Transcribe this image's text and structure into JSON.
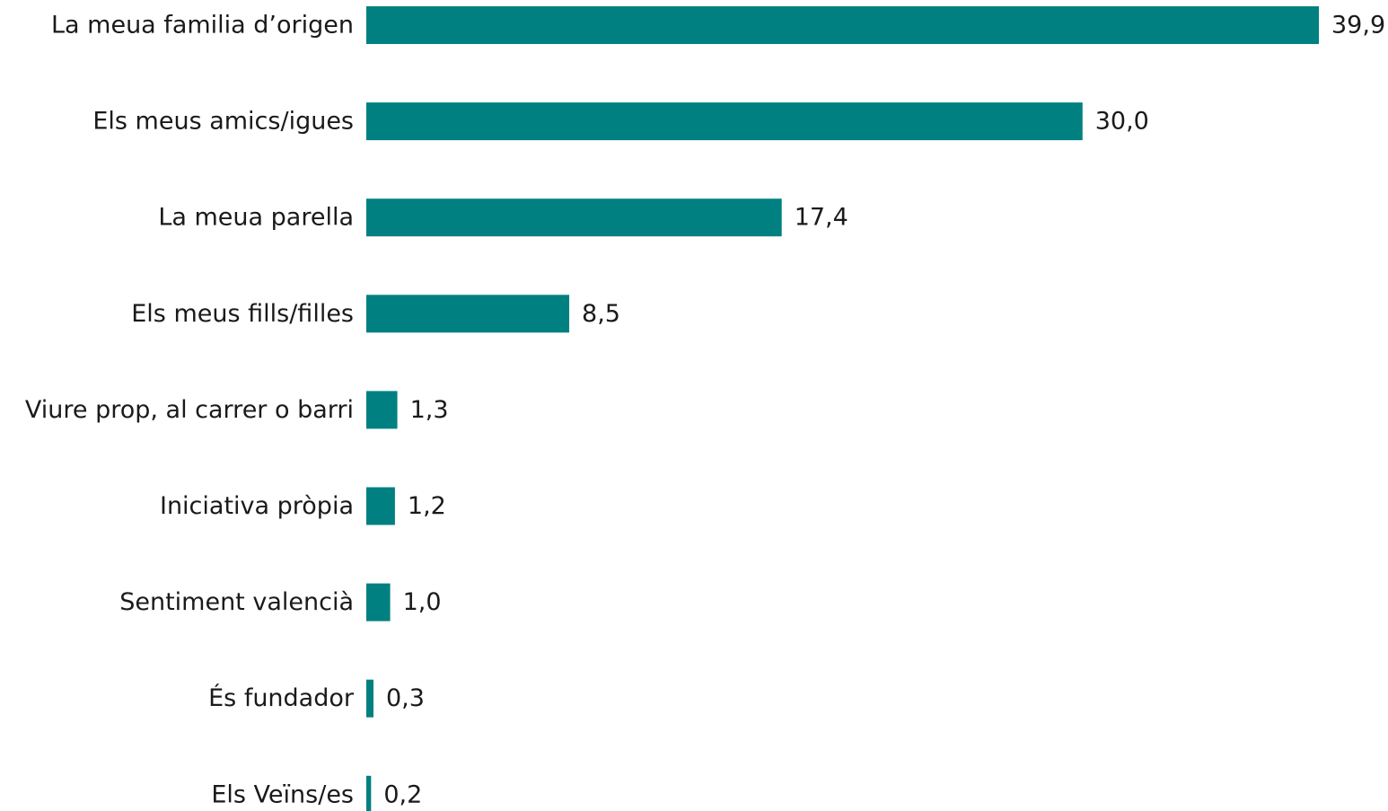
{
  "chart_data": {
    "type": "bar",
    "orientation": "horizontal",
    "categories": [
      "La meua familia d’origen",
      "Els meus amics/igues",
      "La meua parella",
      "Els meus fills/filles",
      "Viure prop, al carrer o barri",
      "Iniciativa pròpia",
      "Sentiment valencià",
      "És fundador",
      "Els Veïns/es"
    ],
    "values": [
      39.9,
      30.0,
      17.4,
      8.5,
      1.3,
      1.2,
      1.0,
      0.3,
      0.2
    ],
    "value_labels": [
      "39,9",
      "30,0",
      "17,4",
      "8,5",
      "1,3",
      "1,2",
      "1,0",
      "0,3",
      "0,2"
    ],
    "title": "",
    "xlabel": "",
    "ylabel": "",
    "xlim": [
      0,
      39.9
    ],
    "grid": false,
    "legend": "none",
    "bar_color": "#008080"
  }
}
